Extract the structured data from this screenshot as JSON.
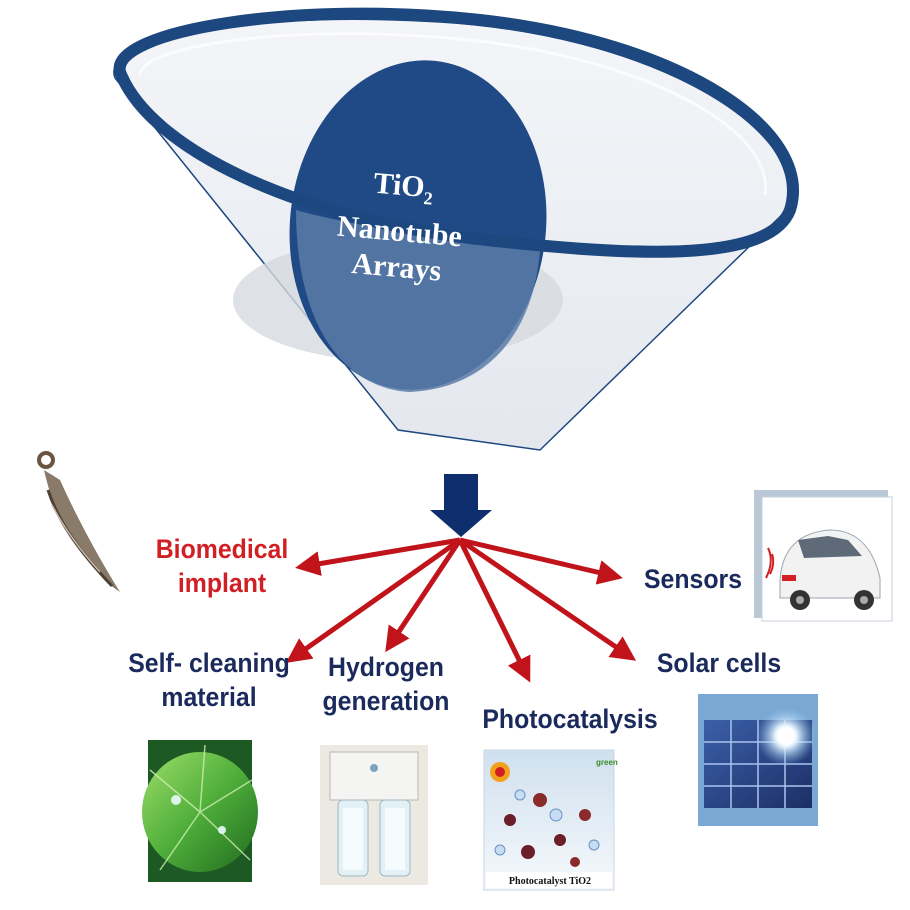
{
  "center": {
    "line1": "TiO",
    "line1_sub": "2",
    "line2": "Nanotube",
    "line3": "Arrays"
  },
  "applications": [
    {
      "line1": "Biomedical",
      "line2": "implant",
      "color": "#d21f24"
    },
    {
      "line1": "Sensors",
      "line2": "",
      "color": "#1b2a5c"
    },
    {
      "line1": "Self- cleaning",
      "line2": "material",
      "color": "#1b2a5c"
    },
    {
      "line1": "Hydrogen",
      "line2": "generation",
      "color": "#1b2a5c"
    },
    {
      "line1": "Photocatalysis",
      "line2": "",
      "color": "#1b2a5c"
    },
    {
      "line1": "Solar cells",
      "line2": "",
      "color": "#1b2a5c"
    }
  ],
  "photocatalyst_caption": "Photocatalyst TiO2",
  "photocatalyst_badge": "green",
  "colors": {
    "arrow": "#c0141a",
    "disc": "#1f4a86",
    "ring": "#1d477f",
    "down_arrow": "#0e2e6e",
    "label_dark": "#1b2a5c",
    "label_red": "#d21f24"
  },
  "icons": [
    "implant-image",
    "car-sensor-image",
    "lotus-leaf-image",
    "water-filter-image",
    "photocatalysis-image",
    "solar-panel-image"
  ]
}
